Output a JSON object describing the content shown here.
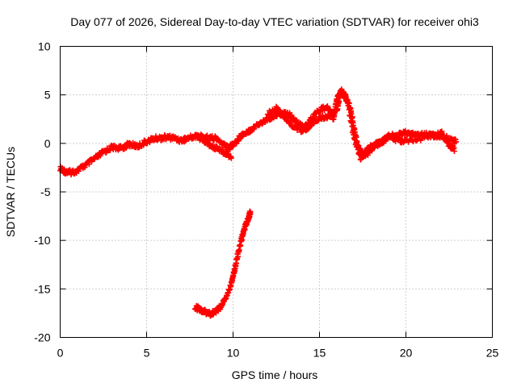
{
  "chart_data": {
    "type": "scatter",
    "title": "Day 077 of 2026, Sidereal Day-to-day VTEC variation (SDTVAR) for receiver ohi3",
    "xlabel": "GPS time / hours",
    "ylabel": "SDTVAR / TECUs",
    "xlim": [
      0,
      25
    ],
    "ylim": [
      -20,
      10
    ],
    "xticks": [
      0,
      5,
      10,
      15,
      20,
      25
    ],
    "yticks": [
      -20,
      -15,
      -10,
      -5,
      0,
      5,
      10
    ],
    "grid": true,
    "marker": "+",
    "series": [
      {
        "name": "SDTVAR main band",
        "color": "#ff0000",
        "points": [
          [
            0.0,
            -2.6
          ],
          [
            0.3,
            -2.9
          ],
          [
            0.6,
            -3.0
          ],
          [
            1.0,
            -2.8
          ],
          [
            1.5,
            -2.2
          ],
          [
            2.0,
            -1.6
          ],
          [
            2.5,
            -0.9
          ],
          [
            3.0,
            -0.4
          ],
          [
            3.5,
            -0.5
          ],
          [
            4.0,
            -0.1
          ],
          [
            4.5,
            -0.3
          ],
          [
            5.0,
            0.2
          ],
          [
            5.5,
            0.5
          ],
          [
            6.0,
            0.6
          ],
          [
            6.5,
            0.6
          ],
          [
            7.0,
            0.3
          ],
          [
            7.5,
            0.6
          ],
          [
            8.0,
            0.8
          ],
          [
            8.5,
            0.6
          ],
          [
            9.0,
            0.5
          ],
          [
            9.5,
            -0.2
          ],
          [
            9.8,
            -0.4
          ],
          [
            10.2,
            0.2
          ],
          [
            10.5,
            0.9
          ],
          [
            11.0,
            1.4
          ],
          [
            11.5,
            2.0
          ],
          [
            12.0,
            2.5
          ],
          [
            12.5,
            3.0
          ],
          [
            13.0,
            3.1
          ],
          [
            13.3,
            2.9
          ],
          [
            13.6,
            2.3
          ],
          [
            14.0,
            1.7
          ],
          [
            14.3,
            1.5
          ],
          [
            14.6,
            2.2
          ],
          [
            15.0,
            2.6
          ],
          [
            15.5,
            2.8
          ],
          [
            16.0,
            3.4
          ],
          [
            16.2,
            5.2
          ],
          [
            16.5,
            4.8
          ],
          [
            16.8,
            3.5
          ],
          [
            17.0,
            1.5
          ],
          [
            17.2,
            -0.2
          ],
          [
            17.5,
            -1.2
          ],
          [
            17.8,
            -1.0
          ],
          [
            18.2,
            -0.2
          ],
          [
            18.6,
            0.2
          ],
          [
            19.0,
            0.7
          ],
          [
            19.5,
            0.9
          ],
          [
            20.0,
            1.1
          ],
          [
            20.5,
            0.9
          ],
          [
            21.0,
            1.0
          ],
          [
            21.5,
            0.8
          ],
          [
            22.0,
            0.7
          ],
          [
            22.5,
            0.5
          ],
          [
            22.9,
            0.2
          ]
        ]
      },
      {
        "name": "SDTVAR alternate band",
        "color": "#ff0000",
        "points": [
          [
            7.8,
            0.7
          ],
          [
            8.2,
            0.4
          ],
          [
            8.6,
            -0.1
          ],
          [
            9.0,
            -0.5
          ],
          [
            9.5,
            -0.9
          ],
          [
            9.9,
            -1.4
          ],
          [
            12.0,
            3.0
          ],
          [
            12.5,
            3.6
          ],
          [
            13.0,
            2.7
          ],
          [
            13.5,
            1.8
          ],
          [
            14.0,
            1.3
          ],
          [
            14.5,
            2.5
          ],
          [
            15.0,
            3.4
          ],
          [
            15.5,
            3.8
          ],
          [
            15.8,
            2.5
          ],
          [
            16.0,
            4.6
          ],
          [
            16.3,
            5.4
          ],
          [
            16.6,
            4.5
          ],
          [
            17.0,
            0.5
          ],
          [
            17.4,
            -1.6
          ],
          [
            17.9,
            -0.3
          ],
          [
            18.5,
            -0.1
          ],
          [
            19.0,
            0.8
          ],
          [
            19.5,
            0.3
          ],
          [
            20.0,
            0.2
          ],
          [
            21.0,
            0.6
          ],
          [
            22.0,
            1.2
          ],
          [
            22.5,
            -0.2
          ],
          [
            22.8,
            -0.6
          ]
        ]
      },
      {
        "name": "SDTVAR lower track",
        "color": "#ff0000",
        "points": [
          [
            7.8,
            -16.9
          ],
          [
            8.1,
            -17.1
          ],
          [
            8.4,
            -17.4
          ],
          [
            8.7,
            -17.6
          ],
          [
            9.0,
            -17.3
          ],
          [
            9.3,
            -16.8
          ],
          [
            9.6,
            -15.9
          ],
          [
            9.9,
            -14.5
          ],
          [
            10.1,
            -12.9
          ],
          [
            10.3,
            -11.3
          ],
          [
            10.5,
            -9.8
          ],
          [
            10.7,
            -8.6
          ],
          [
            10.9,
            -7.6
          ],
          [
            11.0,
            -7.1
          ]
        ]
      }
    ]
  }
}
